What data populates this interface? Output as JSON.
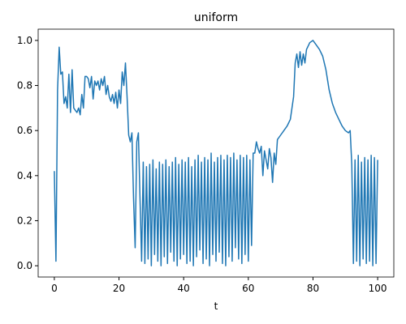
{
  "chart_data": {
    "type": "line",
    "title": "uniform",
    "xlabel": "t",
    "color": "#1f77b4",
    "xlim": [
      -5,
      105
    ],
    "ylim": [
      -0.05,
      1.05
    ],
    "xticks": [
      0,
      20,
      40,
      60,
      80,
      100
    ],
    "yticks": [
      {
        "value": 0,
        "label": "0.0"
      },
      0.2,
      0.4,
      0.6,
      0.8,
      {
        "value": 1,
        "label": "1.0"
      }
    ],
    "x": [
      0,
      0.5,
      1,
      1.5,
      2,
      2.5,
      3,
      3.5,
      4,
      4.5,
      5,
      5.5,
      6,
      6.5,
      7,
      7.5,
      8,
      8.5,
      9,
      9.5,
      10,
      10.5,
      11,
      11.5,
      12,
      12.5,
      13,
      13.5,
      14,
      14.5,
      15,
      15.5,
      16,
      16.5,
      17,
      17.5,
      18,
      18.5,
      19,
      19.5,
      20,
      20.5,
      21,
      21.5,
      22,
      22.5,
      23,
      23.5,
      24,
      24.5,
      25,
      25.5,
      26,
      26.5,
      27,
      27.5,
      28,
      28.5,
      29,
      29.5,
      30,
      30.5,
      31,
      31.5,
      32,
      32.5,
      33,
      33.5,
      34,
      34.5,
      35,
      35.5,
      36,
      36.5,
      37,
      37.5,
      38,
      38.5,
      39,
      39.5,
      40,
      40.5,
      41,
      41.5,
      42,
      42.5,
      43,
      43.5,
      44,
      44.5,
      45,
      45.5,
      46,
      46.5,
      47,
      47.5,
      48,
      48.5,
      49,
      49.5,
      50,
      50.5,
      51,
      51.5,
      52,
      52.5,
      53,
      53.5,
      54,
      54.5,
      55,
      55.5,
      56,
      56.5,
      57,
      57.5,
      58,
      58.5,
      59,
      59.5,
      60,
      60.5,
      61,
      61.5,
      62,
      62.5,
      63,
      63.5,
      64,
      64.5,
      65,
      65.5,
      66,
      66.5,
      67,
      67.5,
      68,
      68.5,
      69,
      70,
      71,
      72,
      73,
      74,
      74.5,
      75,
      75.5,
      76,
      76.5,
      77,
      77.5,
      78,
      79,
      80,
      81,
      82,
      83,
      84,
      85,
      86,
      87,
      88,
      89,
      90,
      91,
      91.5,
      92,
      92.5,
      93,
      93.5,
      94,
      94.5,
      95,
      95.5,
      96,
      96.5,
      97,
      97.5,
      98,
      98.5,
      99,
      99.5,
      100
    ],
    "values": [
      0.42,
      0.02,
      0.78,
      0.97,
      0.85,
      0.86,
      0.72,
      0.75,
      0.7,
      0.85,
      0.68,
      0.87,
      0.7,
      0.69,
      0.68,
      0.7,
      0.67,
      0.76,
      0.7,
      0.84,
      0.84,
      0.83,
      0.79,
      0.84,
      0.74,
      0.82,
      0.8,
      0.82,
      0.78,
      0.83,
      0.8,
      0.84,
      0.76,
      0.8,
      0.75,
      0.73,
      0.76,
      0.72,
      0.77,
      0.7,
      0.78,
      0.72,
      0.86,
      0.8,
      0.9,
      0.75,
      0.58,
      0.55,
      0.59,
      0.3,
      0.08,
      0.55,
      0.59,
      0.3,
      0.02,
      0.46,
      0.01,
      0.44,
      0.03,
      0.45,
      0.0,
      0.47,
      0.05,
      0.43,
      0.02,
      0.46,
      0.0,
      0.45,
      0.04,
      0.47,
      0.01,
      0.44,
      0.06,
      0.46,
      0.02,
      0.48,
      0.0,
      0.45,
      0.03,
      0.47,
      0.05,
      0.46,
      0.01,
      0.48,
      0.02,
      0.44,
      0.0,
      0.47,
      0.04,
      0.49,
      0.07,
      0.46,
      0.01,
      0.48,
      0.03,
      0.47,
      0.0,
      0.5,
      0.05,
      0.46,
      0.02,
      0.48,
      0.06,
      0.49,
      0.01,
      0.47,
      0.0,
      0.49,
      0.04,
      0.48,
      0.02,
      0.5,
      0.08,
      0.47,
      0.03,
      0.49,
      0.01,
      0.48,
      0.05,
      0.49,
      0.02,
      0.47,
      0.09,
      0.5,
      0.5,
      0.55,
      0.52,
      0.5,
      0.53,
      0.4,
      0.51,
      0.47,
      0.43,
      0.52,
      0.48,
      0.37,
      0.5,
      0.45,
      0.56,
      0.58,
      0.6,
      0.62,
      0.65,
      0.75,
      0.9,
      0.94,
      0.88,
      0.95,
      0.89,
      0.94,
      0.9,
      0.96,
      0.99,
      1.0,
      0.98,
      0.96,
      0.93,
      0.87,
      0.78,
      0.72,
      0.68,
      0.65,
      0.62,
      0.6,
      0.59,
      0.6,
      0.45,
      0.01,
      0.47,
      0.02,
      0.49,
      0.0,
      0.46,
      0.03,
      0.48,
      0.01,
      0.47,
      0.02,
      0.49,
      0.0,
      0.48,
      0.01,
      0.47
    ]
  }
}
